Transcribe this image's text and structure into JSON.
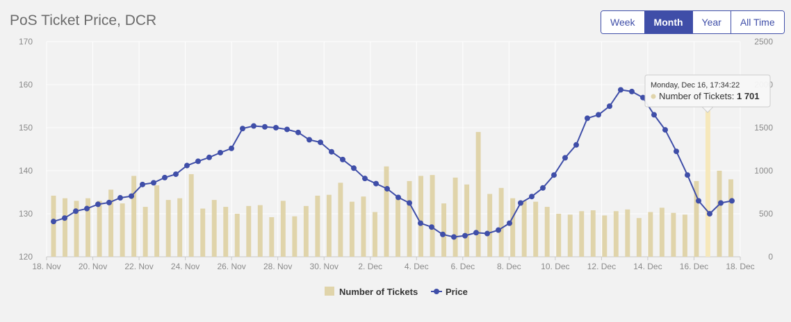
{
  "header": {
    "title": "PoS Ticket Price, DCR"
  },
  "range_buttons": [
    {
      "label": "Week",
      "active": false
    },
    {
      "label": "Month",
      "active": true
    },
    {
      "label": "Year",
      "active": false
    },
    {
      "label": "All Time",
      "active": false
    }
  ],
  "colors": {
    "bars": "#e0d4aa",
    "bar_highlight": "#f6e8bb",
    "line": "#3f4ea8",
    "grid": "#ffffff"
  },
  "chart_data": {
    "type": "bar+line",
    "x_tick_labels": [
      "18. Nov",
      "20. Nov",
      "22. Nov",
      "24. Nov",
      "26. Nov",
      "28. Nov",
      "30. Nov",
      "2. Dec",
      "4. Dec",
      "6. Dec",
      "8. Dec",
      "10. Dec",
      "12. Dec",
      "14. Dec",
      "16. Dec",
      "18. Dec"
    ],
    "y_left": {
      "min": 120,
      "max": 170,
      "ticks": [
        "120",
        "130",
        "140",
        "150",
        "160",
        "170"
      ]
    },
    "y_right": {
      "min": 0,
      "max": 2500,
      "ticks": [
        "0",
        "500",
        "1000",
        "1500",
        "2000",
        "2500"
      ]
    },
    "legend": [
      "Number of Tickets",
      "Price"
    ],
    "series": [
      {
        "name": "Number of Tickets",
        "kind": "bar",
        "axis": "right",
        "values": [
          710,
          680,
          650,
          680,
          650,
          780,
          620,
          940,
          580,
          830,
          660,
          680,
          960,
          560,
          660,
          580,
          500,
          590,
          600,
          460,
          650,
          470,
          590,
          710,
          720,
          860,
          640,
          700,
          520,
          1050,
          670,
          880,
          940,
          950,
          620,
          920,
          840,
          1450,
          730,
          800,
          680,
          650,
          640,
          580,
          500,
          490,
          530,
          540,
          480,
          530,
          550,
          450,
          520,
          570,
          510,
          490,
          880,
          1701,
          1000,
          900
        ]
      },
      {
        "name": "Price",
        "kind": "line",
        "axis": "left",
        "values": [
          128.2,
          129.0,
          130.6,
          131.2,
          132.2,
          132.6,
          133.7,
          134.1,
          136.8,
          137.2,
          138.4,
          139.2,
          141.2,
          142.2,
          143.1,
          144.2,
          145.2,
          149.8,
          150.4,
          150.2,
          150.0,
          149.6,
          148.9,
          147.2,
          146.6,
          144.4,
          142.6,
          140.6,
          138.2,
          137.0,
          135.8,
          133.8,
          132.5,
          127.8,
          126.9,
          125.2,
          124.6,
          124.9,
          125.6,
          125.4,
          126.2,
          127.8,
          132.5,
          134.0,
          136.0,
          139.0,
          143.0,
          146.0,
          152.2,
          153.0,
          155.0,
          158.8,
          158.4,
          157.0,
          153.0,
          149.5,
          144.5,
          139.0,
          133.0,
          130.0,
          132.5,
          133.0
        ]
      }
    ],
    "tooltip": {
      "header": "Monday, Dec 16, 17:34:22",
      "label": "Number of Tickets: ",
      "value": "1 701"
    }
  }
}
